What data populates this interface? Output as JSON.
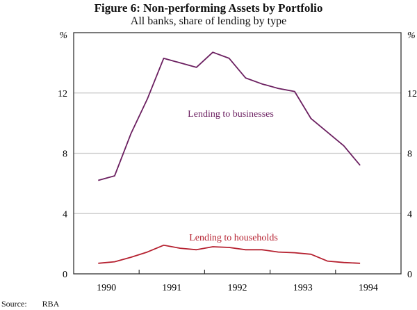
{
  "chart_data": {
    "type": "line",
    "title": "Figure 6: Non-performing Assets by Portfolio",
    "subtitle": "All banks, share of lending by type",
    "ylabel_left": "%",
    "ylabel_right": "%",
    "ylim": [
      0,
      16
    ],
    "yticks": [
      0,
      4,
      8,
      12
    ],
    "xlim": [
      1990,
      1995
    ],
    "xtick_labels": [
      "1990",
      "1991",
      "1992",
      "1993",
      "1994"
    ],
    "grid": true,
    "x": [
      1990.375,
      1990.625,
      1990.875,
      1991.125,
      1991.375,
      1991.625,
      1991.875,
      1992.125,
      1992.375,
      1992.625,
      1992.875,
      1993.125,
      1993.375,
      1993.625,
      1993.875,
      1994.125,
      1994.375
    ],
    "series": [
      {
        "name": "Lending to businesses",
        "color": "#6b1f60",
        "values": [
          6.2,
          6.5,
          9.3,
          11.6,
          14.3,
          14.0,
          13.7,
          14.7,
          14.3,
          13.0,
          12.6,
          12.3,
          12.1,
          10.3,
          9.4,
          8.5,
          7.2
        ]
      },
      {
        "name": "Lending to households",
        "color": "#b5202f",
        "values": [
          0.7,
          0.8,
          1.1,
          1.45,
          1.9,
          1.7,
          1.6,
          1.8,
          1.75,
          1.6,
          1.6,
          1.45,
          1.4,
          1.3,
          0.85,
          0.75,
          0.7
        ]
      }
    ]
  },
  "source": {
    "label": "Source:",
    "value": "RBA"
  }
}
